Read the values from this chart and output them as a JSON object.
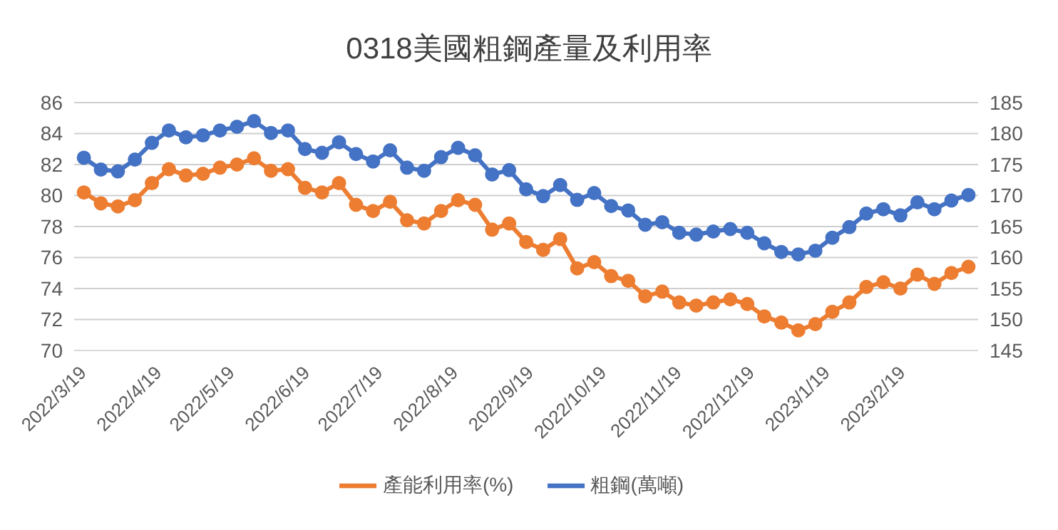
{
  "chart_data": {
    "type": "line",
    "title": "0318美國粗鋼產量及利用率",
    "x": [
      "2022-03-19",
      "2022-03-26",
      "2022-04-02",
      "2022-04-09",
      "2022-04-16",
      "2022-04-23",
      "2022-04-30",
      "2022-05-07",
      "2022-05-14",
      "2022-05-21",
      "2022-05-28",
      "2022-06-04",
      "2022-06-11",
      "2022-06-18",
      "2022-06-25",
      "2022-07-02",
      "2022-07-09",
      "2022-07-16",
      "2022-07-23",
      "2022-07-30",
      "2022-08-06",
      "2022-08-13",
      "2022-08-20",
      "2022-08-27",
      "2022-09-03",
      "2022-09-10",
      "2022-09-17",
      "2022-09-24",
      "2022-10-01",
      "2022-10-08",
      "2022-10-15",
      "2022-10-22",
      "2022-10-29",
      "2022-11-05",
      "2022-11-12",
      "2022-11-19",
      "2022-11-26",
      "2022-12-03",
      "2022-12-10",
      "2022-12-17",
      "2022-12-24",
      "2022-12-31",
      "2023-01-07",
      "2023-01-14",
      "2023-01-21",
      "2023-01-28",
      "2023-02-04",
      "2023-02-11",
      "2023-02-18",
      "2023-02-25",
      "2023-03-04",
      "2023-03-11",
      "2023-03-18"
    ],
    "series": [
      {
        "name": "產能利用率(%)",
        "color": "#ed7d31",
        "axis": "y",
        "values": [
          80.2,
          79.5,
          79.3,
          79.7,
          80.8,
          81.7,
          81.3,
          81.4,
          81.8,
          82.0,
          82.4,
          81.6,
          81.7,
          80.5,
          80.2,
          80.8,
          79.4,
          79.0,
          79.6,
          78.4,
          78.2,
          79.0,
          79.7,
          79.4,
          77.8,
          78.2,
          77.0,
          76.5,
          77.2,
          75.3,
          75.7,
          74.8,
          74.5,
          73.5,
          73.8,
          73.1,
          72.9,
          73.1,
          73.3,
          73.0,
          72.2,
          71.8,
          71.3,
          71.7,
          72.5,
          73.1,
          74.1,
          74.4,
          74.0,
          74.9,
          74.3,
          75.0,
          75.4
        ]
      },
      {
        "name": "粗鋼(萬噸)",
        "color": "#4472c4",
        "axis": "y2",
        "values": [
          176.1,
          174.2,
          173.9,
          175.8,
          178.5,
          180.5,
          179.4,
          179.7,
          180.5,
          181.1,
          182.0,
          180.1,
          180.5,
          177.5,
          176.9,
          178.6,
          176.7,
          175.5,
          177.3,
          174.5,
          174.0,
          176.2,
          177.7,
          176.5,
          173.4,
          174.1,
          171.0,
          169.9,
          171.7,
          169.3,
          170.4,
          168.3,
          167.6,
          165.3,
          165.7,
          164.0,
          163.7,
          164.2,
          164.6,
          164.0,
          162.3,
          160.9,
          160.5,
          161.1,
          163.2,
          164.9,
          167.1,
          167.8,
          166.8,
          168.9,
          167.8,
          169.2,
          170.1
        ]
      }
    ],
    "xlim": [
      "2022-03-15",
      "2023-03-22"
    ],
    "xticks": [
      {
        "value": "2022-03-19",
        "label": "2022/3/19"
      },
      {
        "value": "2022-04-19",
        "label": "2022/4/19"
      },
      {
        "value": "2022-05-19",
        "label": "2022/5/19"
      },
      {
        "value": "2022-06-19",
        "label": "2022/6/19"
      },
      {
        "value": "2022-07-19",
        "label": "2022/7/19"
      },
      {
        "value": "2022-08-19",
        "label": "2022/8/19"
      },
      {
        "value": "2022-09-19",
        "label": "2022/9/19"
      },
      {
        "value": "2022-10-19",
        "label": "2022/10/19"
      },
      {
        "value": "2022-11-19",
        "label": "2022/11/19"
      },
      {
        "value": "2022-12-19",
        "label": "2022/12/19"
      },
      {
        "value": "2023-01-19",
        "label": "2023/1/19"
      },
      {
        "value": "2023-02-19",
        "label": "2023/2/19"
      }
    ],
    "ylim": [
      70,
      86
    ],
    "yticks": [
      70,
      72,
      74,
      76,
      78,
      80,
      82,
      84,
      86
    ],
    "y2lim": [
      145,
      185
    ],
    "y2ticks": [
      145,
      150,
      155,
      160,
      165,
      170,
      175,
      180,
      185
    ],
    "grid": "y",
    "legend": "bottom",
    "marker": "circle",
    "line_style": "solid"
  }
}
